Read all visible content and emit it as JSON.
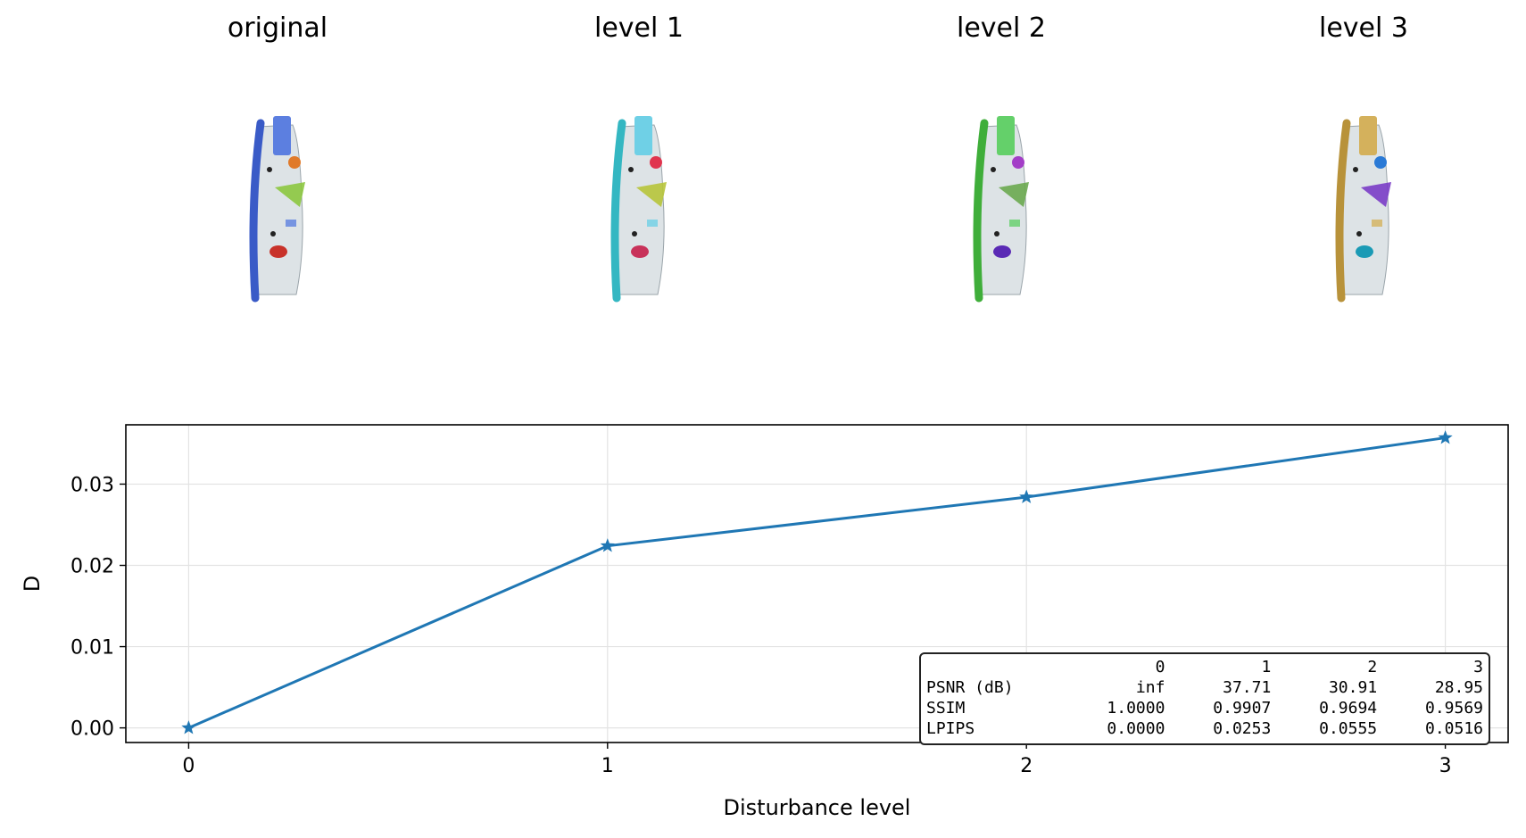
{
  "panels": [
    {
      "title": "original",
      "palette": {
        "zip": "#3a5bc7",
        "handle": "#5c7fe0",
        "pennant": "#8cc63f",
        "accent1": "#e07a2a",
        "accent2": "#c8322a"
      }
    },
    {
      "title": "level 1",
      "palette": {
        "zip": "#34b7c2",
        "handle": "#6fd0e6",
        "pennant": "#b7c43a",
        "accent1": "#e0344e",
        "accent2": "#c8325a"
      }
    },
    {
      "title": "level 2",
      "palette": {
        "zip": "#3fae3a",
        "handle": "#64d06a",
        "pennant": "#6aa84f",
        "accent1": "#a33ec7",
        "accent2": "#5a2ab5"
      }
    },
    {
      "title": "level 3",
      "palette": {
        "zip": "#b8923a",
        "handle": "#d4b15c",
        "pennant": "#7a3cc7",
        "accent1": "#2a7ad6",
        "accent2": "#1a9ab5"
      }
    }
  ],
  "chart_data": {
    "type": "line",
    "x": [
      0,
      1,
      2,
      3
    ],
    "series": [
      {
        "values": [
          0.0,
          0.0224,
          0.0284,
          0.0357
        ],
        "color": "#1f77b4",
        "marker": "star"
      }
    ],
    "xlabel": "Disturbance level",
    "ylabel": "D",
    "xticks": [
      "0",
      "1",
      "2",
      "3"
    ],
    "yticks": [
      "0.00",
      "0.01",
      "0.02",
      "0.03"
    ],
    "xlim": [
      -0.15,
      3.15
    ],
    "ylim": [
      -0.0018,
      0.0373
    ],
    "grid": true,
    "table": {
      "header": [
        "",
        "0",
        "1",
        "2",
        "3"
      ],
      "rows": [
        [
          "PSNR (dB)",
          "inf",
          "37.71",
          "30.91",
          "28.95"
        ],
        [
          "SSIM",
          "1.0000",
          "0.9907",
          "0.9694",
          "0.9569"
        ],
        [
          "LPIPS",
          "0.0000",
          "0.0253",
          "0.0555",
          "0.0516"
        ]
      ]
    }
  }
}
